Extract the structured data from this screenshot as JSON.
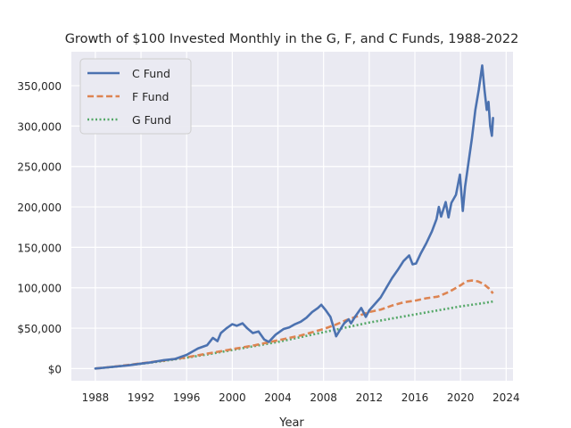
{
  "chart_data": {
    "type": "line",
    "title": "Growth of $100 Invested Monthly in the G, F, and C Funds, 1988-2022",
    "xlabel": "Year",
    "ylabel": "",
    "xlim": [
      1985.9,
      2024.6
    ],
    "ylim": [
      -15000,
      392000
    ],
    "x_ticks": [
      1988,
      1992,
      1996,
      2000,
      2004,
      2008,
      2012,
      2016,
      2020,
      2024
    ],
    "y_ticks": [
      0,
      50000,
      100000,
      150000,
      200000,
      250000,
      300000,
      350000
    ],
    "y_tick_labels": [
      "$0",
      "$50,000",
      "100,000",
      "150,000",
      "200,000",
      "250,000",
      "300,000",
      "350,000"
    ],
    "grid": true,
    "legend_position": "upper-left",
    "series": [
      {
        "name": "C Fund",
        "color": "#4c72b0",
        "style": "solid",
        "points": [
          [
            1988.0,
            100
          ],
          [
            1989.0,
            1400
          ],
          [
            1990.0,
            2800
          ],
          [
            1991.0,
            4200
          ],
          [
            1992.0,
            6200
          ],
          [
            1993.0,
            8000
          ],
          [
            1994.0,
            10500
          ],
          [
            1995.0,
            12000
          ],
          [
            1996.0,
            17000
          ],
          [
            1997.0,
            25000
          ],
          [
            1997.8,
            29000
          ],
          [
            1998.3,
            38000
          ],
          [
            1998.7,
            34000
          ],
          [
            1999.0,
            44000
          ],
          [
            1999.5,
            50000
          ],
          [
            2000.0,
            55000
          ],
          [
            2000.4,
            53000
          ],
          [
            2000.9,
            56000
          ],
          [
            2001.3,
            50000
          ],
          [
            2001.8,
            44000
          ],
          [
            2002.3,
            46000
          ],
          [
            2002.8,
            36000
          ],
          [
            2003.2,
            33000
          ],
          [
            2003.8,
            42000
          ],
          [
            2004.5,
            49000
          ],
          [
            2005.0,
            51000
          ],
          [
            2005.5,
            55000
          ],
          [
            2006.0,
            58000
          ],
          [
            2006.5,
            63000
          ],
          [
            2007.0,
            70000
          ],
          [
            2007.5,
            75000
          ],
          [
            2007.8,
            79000
          ],
          [
            2008.2,
            72000
          ],
          [
            2008.6,
            64000
          ],
          [
            2008.9,
            50000
          ],
          [
            2009.1,
            40000
          ],
          [
            2009.4,
            47000
          ],
          [
            2009.8,
            56000
          ],
          [
            2010.2,
            61000
          ],
          [
            2010.4,
            56000
          ],
          [
            2010.8,
            65000
          ],
          [
            2011.3,
            75000
          ],
          [
            2011.7,
            64000
          ],
          [
            2012.0,
            72000
          ],
          [
            2012.5,
            80000
          ],
          [
            2013.0,
            88000
          ],
          [
            2013.5,
            100000
          ],
          [
            2014.0,
            112000
          ],
          [
            2014.5,
            122000
          ],
          [
            2015.0,
            133000
          ],
          [
            2015.5,
            140000
          ],
          [
            2015.8,
            129000
          ],
          [
            2016.1,
            130000
          ],
          [
            2016.5,
            142000
          ],
          [
            2017.0,
            155000
          ],
          [
            2017.5,
            170000
          ],
          [
            2017.9,
            185000
          ],
          [
            2018.1,
            200000
          ],
          [
            2018.3,
            188000
          ],
          [
            2018.7,
            206000
          ],
          [
            2018.95,
            187000
          ],
          [
            2019.2,
            205000
          ],
          [
            2019.6,
            215000
          ],
          [
            2019.95,
            240000
          ],
          [
            2020.2,
            195000
          ],
          [
            2020.4,
            225000
          ],
          [
            2020.7,
            255000
          ],
          [
            2021.0,
            285000
          ],
          [
            2021.3,
            320000
          ],
          [
            2021.6,
            345000
          ],
          [
            2021.9,
            375000
          ],
          [
            2022.1,
            345000
          ],
          [
            2022.3,
            320000
          ],
          [
            2022.45,
            330000
          ],
          [
            2022.6,
            300000
          ],
          [
            2022.75,
            288000
          ],
          [
            2022.85,
            310000
          ]
        ]
      },
      {
        "name": "F Fund",
        "color": "#dd8452",
        "style": "dashed",
        "points": [
          [
            1988.0,
            100
          ],
          [
            1990.0,
            3000
          ],
          [
            1992.0,
            6500
          ],
          [
            1994.0,
            10000
          ],
          [
            1996.0,
            14000
          ],
          [
            1998.0,
            19000
          ],
          [
            2000.0,
            24000
          ],
          [
            2002.0,
            29000
          ],
          [
            2004.0,
            35000
          ],
          [
            2006.0,
            41000
          ],
          [
            2008.0,
            49000
          ],
          [
            2009.0,
            54000
          ],
          [
            2010.0,
            60000
          ],
          [
            2011.0,
            65000
          ],
          [
            2012.0,
            70000
          ],
          [
            2013.0,
            73000
          ],
          [
            2014.0,
            78000
          ],
          [
            2015.0,
            82000
          ],
          [
            2016.0,
            84000
          ],
          [
            2017.0,
            87000
          ],
          [
            2018.0,
            89000
          ],
          [
            2019.0,
            95000
          ],
          [
            2020.0,
            103000
          ],
          [
            2020.5,
            108000
          ],
          [
            2021.0,
            109000
          ],
          [
            2021.5,
            108000
          ],
          [
            2022.0,
            105000
          ],
          [
            2022.5,
            99000
          ],
          [
            2022.85,
            93000
          ]
        ]
      },
      {
        "name": "G Fund",
        "color": "#55a868",
        "style": "dotted",
        "points": [
          [
            1988.0,
            100
          ],
          [
            1990.0,
            2800
          ],
          [
            1992.0,
            6000
          ],
          [
            1994.0,
            9500
          ],
          [
            1996.0,
            13500
          ],
          [
            1998.0,
            18000
          ],
          [
            2000.0,
            23000
          ],
          [
            2002.0,
            28000
          ],
          [
            2004.0,
            33000
          ],
          [
            2006.0,
            39000
          ],
          [
            2008.0,
            45000
          ],
          [
            2010.0,
            51000
          ],
          [
            2012.0,
            57000
          ],
          [
            2014.0,
            62000
          ],
          [
            2016.0,
            67000
          ],
          [
            2018.0,
            72000
          ],
          [
            2020.0,
            77000
          ],
          [
            2022.0,
            81000
          ],
          [
            2022.85,
            83000
          ]
        ]
      }
    ]
  }
}
